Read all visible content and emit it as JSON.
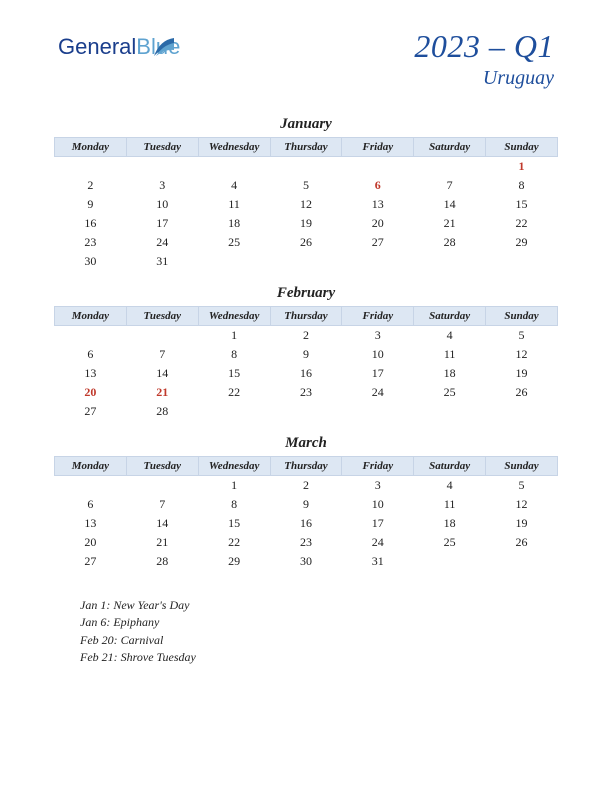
{
  "logo": {
    "part1": "General",
    "part2": "Blue"
  },
  "title": {
    "main": "2023 – Q1",
    "sub": "Uruguay"
  },
  "colors": {
    "header_bg": "#dde7f3",
    "header_border": "#c7d4e6",
    "title": "#1e4e9c",
    "holiday": "#c0392b",
    "logo1": "#1a3e8c",
    "logo2": "#5fa3d0"
  },
  "weekdays": [
    "Monday",
    "Tuesday",
    "Wednesday",
    "Thursday",
    "Friday",
    "Saturday",
    "Sunday"
  ],
  "months": [
    {
      "name": "January",
      "weeks": [
        [
          "",
          "",
          "",
          "",
          "",
          "",
          "1"
        ],
        [
          "2",
          "3",
          "4",
          "5",
          "6",
          "7",
          "8"
        ],
        [
          "9",
          "10",
          "11",
          "12",
          "13",
          "14",
          "15"
        ],
        [
          "16",
          "17",
          "18",
          "19",
          "20",
          "21",
          "22"
        ],
        [
          "23",
          "24",
          "25",
          "26",
          "27",
          "28",
          "29"
        ],
        [
          "30",
          "31",
          "",
          "",
          "",
          "",
          ""
        ]
      ],
      "holidays": [
        "1",
        "6"
      ]
    },
    {
      "name": "February",
      "weeks": [
        [
          "",
          "",
          "1",
          "2",
          "3",
          "4",
          "5"
        ],
        [
          "6",
          "7",
          "8",
          "9",
          "10",
          "11",
          "12"
        ],
        [
          "13",
          "14",
          "15",
          "16",
          "17",
          "18",
          "19"
        ],
        [
          "20",
          "21",
          "22",
          "23",
          "24",
          "25",
          "26"
        ],
        [
          "27",
          "28",
          "",
          "",
          "",
          "",
          ""
        ]
      ],
      "holidays": [
        "20",
        "21"
      ]
    },
    {
      "name": "March",
      "weeks": [
        [
          "",
          "",
          "1",
          "2",
          "3",
          "4",
          "5"
        ],
        [
          "6",
          "7",
          "8",
          "9",
          "10",
          "11",
          "12"
        ],
        [
          "13",
          "14",
          "15",
          "16",
          "17",
          "18",
          "19"
        ],
        [
          "20",
          "21",
          "22",
          "23",
          "24",
          "25",
          "26"
        ],
        [
          "27",
          "28",
          "29",
          "30",
          "31",
          "",
          ""
        ]
      ],
      "holidays": []
    }
  ],
  "holiday_list": [
    "Jan 1: New Year's Day",
    "Jan 6: Epiphany",
    "Feb 20: Carnival",
    "Feb 21: Shrove Tuesday"
  ]
}
